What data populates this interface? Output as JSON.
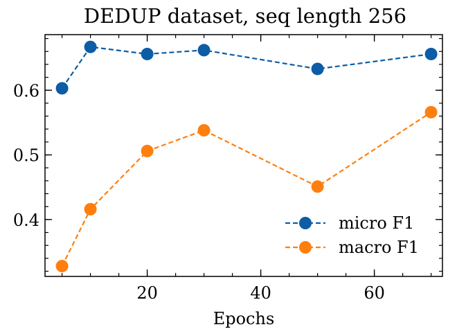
{
  "chart_data": {
    "type": "line",
    "title": "DEDUP dataset, seq length 256",
    "xlabel": "Epochs",
    "ylabel": "",
    "xlim": [
      2,
      72
    ],
    "ylim": [
      0.312,
      0.686
    ],
    "xticks": [
      20,
      40,
      60
    ],
    "xtick_labels": [
      "20",
      "40",
      "60"
    ],
    "xminor_step": 5,
    "yticks": [
      0.4,
      0.5,
      0.6
    ],
    "ytick_labels": [
      "0.4",
      "0.5",
      "0.6"
    ],
    "yminor_step": 0.02,
    "grid": false,
    "legend_position": "lower-right",
    "x": [
      5,
      10,
      20,
      30,
      50,
      70
    ],
    "series": [
      {
        "name": "micro F1",
        "color": "#0c5da5",
        "values": [
          0.603,
          0.667,
          0.656,
          0.662,
          0.633,
          0.656
        ]
      },
      {
        "name": "macro F1",
        "color": "#ff7f0e",
        "values": [
          0.328,
          0.416,
          0.506,
          0.538,
          0.451,
          0.566
        ]
      }
    ]
  }
}
